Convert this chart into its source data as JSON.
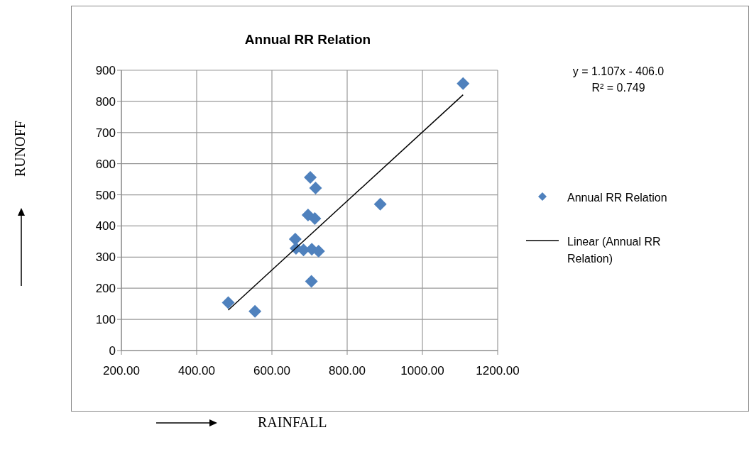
{
  "chart_data": {
    "type": "scatter",
    "title": "Annual RR Relation",
    "xlabel": "RAINFALL",
    "ylabel": "RUNOFF",
    "annotations": [
      "y = 1.107x - 406.0",
      "R² = 0.749"
    ],
    "series": [
      {
        "name": "Annual RR Relation",
        "type": "scatter",
        "color": "#4f81bd",
        "marker": "diamond",
        "x": [
          484,
          555,
          702,
          716,
          696,
          714,
          662,
          664,
          684,
          706,
          724,
          705,
          888,
          1108
        ],
        "values": [
          154,
          126,
          556,
          522,
          435,
          424,
          358,
          328,
          323,
          325,
          319,
          222,
          470,
          857
        ]
      },
      {
        "name": "Linear (Annual RR Relation)",
        "type": "line",
        "color": "#000000",
        "marker": "none",
        "line_style": "solid",
        "x": [
          484,
          1108
        ],
        "values": [
          130,
          821
        ]
      }
    ],
    "xlim": [
      200,
      1200
    ],
    "xticks": [
      {
        "value": 200,
        "label": "200.00"
      },
      {
        "value": 400,
        "label": "400.00"
      },
      {
        "value": 600,
        "label": "600.00"
      },
      {
        "value": 800,
        "label": "800.00"
      },
      {
        "value": 1000,
        "label": "1000.00"
      },
      {
        "value": 1200,
        "label": "1200.00"
      }
    ],
    "ylim": [
      0,
      900
    ],
    "yticks": [
      0,
      100,
      200,
      300,
      400,
      500,
      600,
      700,
      800,
      900
    ],
    "grid": true,
    "legend": "right"
  }
}
